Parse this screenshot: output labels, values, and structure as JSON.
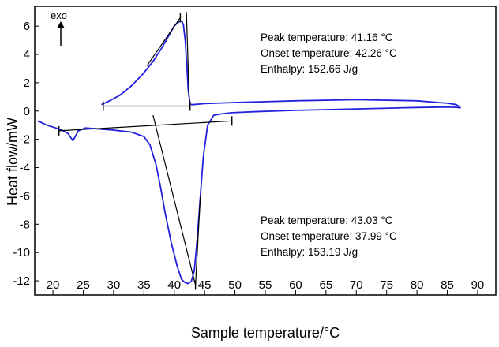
{
  "chart_data": {
    "type": "line",
    "title": "",
    "xlabel": "Sample temperature/°C",
    "ylabel": "Heat flow/mW",
    "xlim": [
      17,
      93
    ],
    "ylim": [
      -13,
      7.4
    ],
    "x_ticks": [
      20,
      25,
      30,
      35,
      40,
      45,
      50,
      55,
      60,
      65,
      70,
      75,
      80,
      85,
      90
    ],
    "y_ticks": [
      6,
      4,
      2,
      0,
      -2,
      -4,
      -6,
      -8,
      -10,
      -12
    ],
    "grid": false,
    "legend": "none",
    "exo_label": "exo",
    "series": [
      {
        "color": "#2222dd",
        "x": [
          17.5,
          19,
          20.5,
          21.5,
          22.5,
          23.3,
          24.2,
          25.3,
          27,
          30,
          33,
          35,
          36,
          37,
          37.7,
          38.5,
          39.5,
          40.5,
          41.2,
          41.7,
          42.2,
          42.8,
          43.3,
          43.8,
          44.3,
          44.8,
          45.5,
          46.5,
          47.8,
          49.5,
          53,
          60,
          70,
          80,
          85,
          86.5,
          87.2
        ],
        "y": [
          -0.7,
          -1.0,
          -1.2,
          -1.35,
          -1.6,
          -2.1,
          -1.4,
          -1.2,
          -1.25,
          -1.35,
          -1.5,
          -1.8,
          -2.4,
          -3.8,
          -5.3,
          -7.2,
          -9.3,
          -11.0,
          -11.9,
          -12.1,
          -12.2,
          -12.05,
          -11.3,
          -9.0,
          -6.0,
          -3.2,
          -1.0,
          -0.3,
          -0.2,
          -0.12,
          -0.05,
          0.05,
          0.15,
          0.25,
          0.28,
          0.26,
          0.22
        ]
      },
      {
        "color": "#2222dd",
        "x": [
          87.2,
          86.5,
          85,
          80,
          70,
          60,
          50,
          45,
          43,
          42.6,
          42.3,
          42.1,
          41.8,
          41.5,
          41.3,
          41.0,
          40.6,
          40.0,
          39.2,
          38.0,
          36.5,
          34.8,
          33.0,
          31.0,
          29.0,
          28.0
        ],
        "y": [
          0.22,
          0.45,
          0.55,
          0.72,
          0.8,
          0.72,
          0.6,
          0.52,
          0.45,
          0.5,
          1.5,
          3.0,
          5.0,
          6.1,
          6.3,
          6.35,
          6.25,
          6.0,
          5.4,
          4.5,
          3.5,
          2.6,
          1.8,
          1.1,
          0.65,
          0.45
        ]
      }
    ],
    "construction_lines": [
      {
        "x1": 28.3,
        "y1": 0.35,
        "x2": 42.6,
        "y2": 0.35
      },
      {
        "x1": 42.6,
        "y1": 0.35,
        "x2": 43.0,
        "y2": 0.35
      },
      {
        "x1": 42.5,
        "y1": 0.35,
        "x2": 42.0,
        "y2": 7.0
      },
      {
        "x1": 35.5,
        "y1": 3.2,
        "x2": 41.0,
        "y2": 6.6
      },
      {
        "x1": 21.0,
        "y1": -1.4,
        "x2": 49.5,
        "y2": -0.7
      },
      {
        "x1": 36.5,
        "y1": -0.3,
        "x2": 43.5,
        "y2": -12.3
      },
      {
        "x1": 43.5,
        "y1": -12.3,
        "x2": 44.3,
        "y2": -6.0
      }
    ],
    "markers": [
      {
        "x": 28.3,
        "y": 0.35
      },
      {
        "x": 42.6,
        "y": 0.35
      },
      {
        "x": 21.0,
        "y": -1.4
      },
      {
        "x": 49.5,
        "y": -0.7
      },
      {
        "x": 41.0,
        "y": 6.6
      },
      {
        "x": 43.5,
        "y": -12.3
      }
    ],
    "annotations": {
      "upper": [
        "Peak temperature: 41.16 °C",
        "Onset temperature: 42.26 °C",
        "Enthalpy: 152.66 J/g"
      ],
      "lower": [
        "Peak temperature: 43.03 °C",
        "Onset temperature: 37.99 °C",
        "Enthalpy: 153.19 J/g"
      ]
    }
  }
}
